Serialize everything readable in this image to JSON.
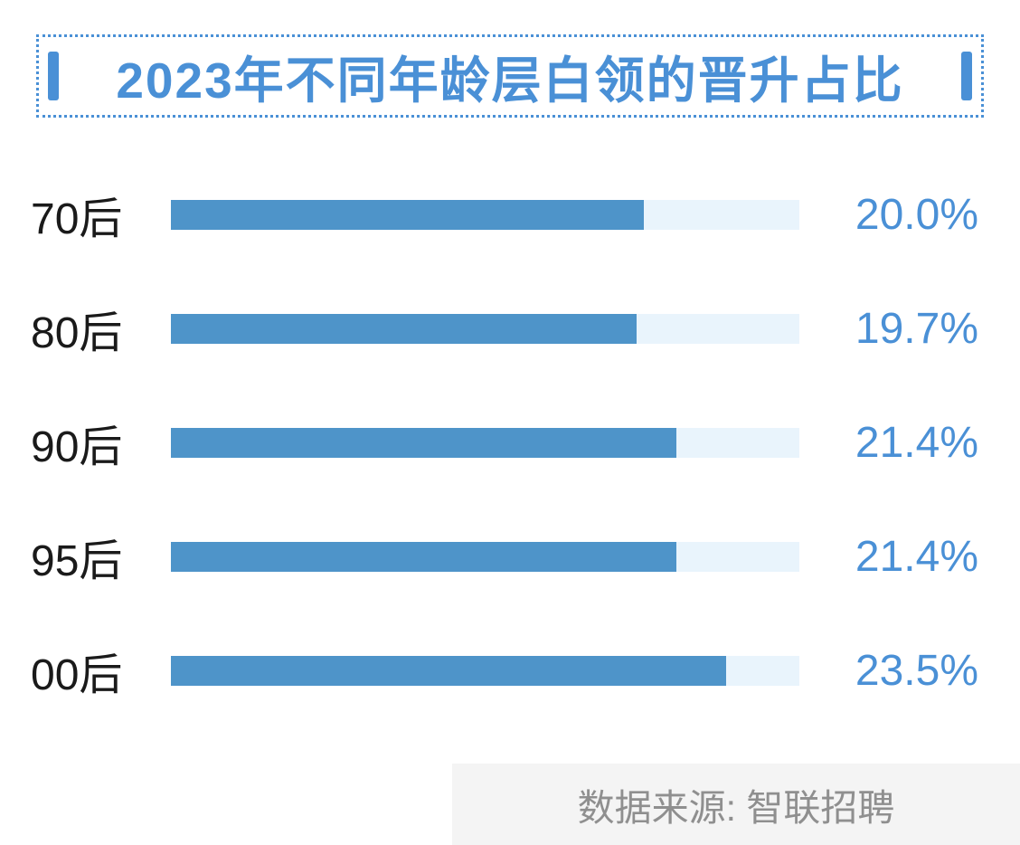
{
  "title": "2023年不同年龄层白领的晋升占比",
  "source": "数据来源: 智联招聘",
  "colors": {
    "accent_blue": "#4a90d6",
    "bar_fill": "#4e94c9",
    "bar_track": "#e9f4fc",
    "label_text": "#1a1a1a",
    "source_text": "#8f8f8f",
    "source_bg": "#f4f4f4"
  },
  "chart_data": {
    "type": "bar",
    "orientation": "horizontal",
    "title": "2023年不同年龄层白领的晋升占比",
    "categories": [
      "70后",
      "80后",
      "90后",
      "95后",
      "00后"
    ],
    "values": [
      20.0,
      19.7,
      21.4,
      21.4,
      23.5
    ],
    "value_labels": [
      "20.0%",
      "19.7%",
      "21.4%",
      "21.4%",
      "23.5%"
    ],
    "xlim": [
      0,
      26.6
    ],
    "grid": false,
    "legend": false,
    "source": "数据来源: 智联招聘"
  }
}
